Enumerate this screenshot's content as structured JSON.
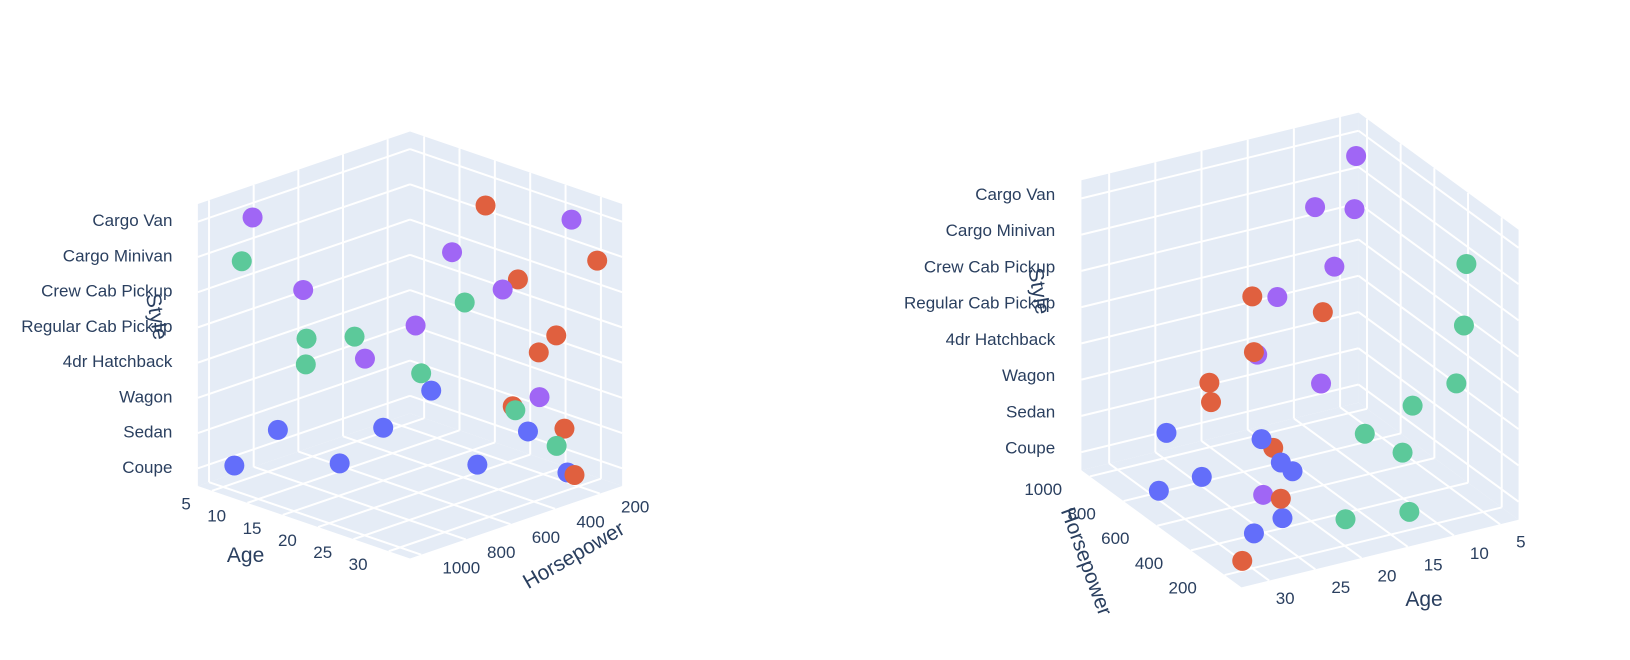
{
  "chart_data": [
    {
      "type": "scatter3d",
      "xlabel": "Age",
      "ylabel": "Horsepower",
      "zlabel": "Style",
      "xlim": [
        3,
        33
      ],
      "ylim": [
        100,
        1050
      ],
      "xticks": [
        5,
        10,
        15,
        20,
        25,
        30
      ],
      "yticks": [
        200,
        400,
        600,
        800,
        1000
      ],
      "zcategories": [
        "Coupe",
        "Sedan",
        "Wagon",
        "4dr Hatchback",
        "Regular Cab Pickup",
        "Crew Cab Pickup",
        "Cargo Minivan",
        "Cargo Van"
      ],
      "series": [
        {
          "color": "#636efa",
          "x": [
            5,
            8,
            12,
            15,
            18,
            22,
            26,
            30
          ],
          "y": [
            950,
            850,
            700,
            600,
            480,
            400,
            300,
            250
          ],
          "z": [
            "Coupe",
            "Sedan",
            "Coupe",
            "Sedan",
            "Wagon",
            "Coupe",
            "Sedan",
            "Coupe"
          ]
        },
        {
          "color": "#a066f5",
          "x": [
            6,
            10,
            14,
            18,
            20,
            24,
            27,
            29
          ],
          "y": [
            900,
            800,
            650,
            550,
            450,
            350,
            280,
            200
          ],
          "z": [
            "Cargo Van",
            "Crew Cab Pickup",
            "4dr Hatchback",
            "Regular Cab Pickup",
            "Cargo Minivan",
            "Crew Cab Pickup",
            "Wagon",
            "Cargo Van"
          ]
        },
        {
          "color": "#5cc99a",
          "x": [
            7,
            11,
            16,
            21,
            24,
            28,
            31,
            13
          ],
          "y": [
            980,
            820,
            760,
            620,
            520,
            420,
            330,
            880
          ],
          "z": [
            "Cargo Minivan",
            "4dr Hatchback",
            "Regular Cab Pickup",
            "4dr Hatchback",
            "Crew Cab Pickup",
            "Wagon",
            "Sedan",
            "Regular Cab Pickup"
          ]
        },
        {
          "color": "#e0603f",
          "x": [
            20,
            23,
            25,
            27,
            28,
            30,
            31,
            32
          ],
          "y": [
            300,
            250,
            220,
            400,
            200,
            300,
            250,
            180
          ],
          "z": [
            "Cargo Van",
            "Crew Cab Pickup",
            "4dr Hatchback",
            "Wagon",
            "Sedan",
            "Regular Cab Pickup",
            "Coupe",
            "Cargo Minivan"
          ]
        }
      ]
    },
    {
      "type": "scatter3d",
      "xlabel": "Age",
      "ylabel": "Horsepower",
      "zlabel": "Style",
      "xlim": [
        3,
        33
      ],
      "ylim": [
        100,
        1050
      ],
      "xticks": [
        5,
        10,
        15,
        20,
        25,
        30
      ],
      "yticks": [
        200,
        400,
        600,
        800,
        1000
      ],
      "zcategories": [
        "Coupe",
        "Sedan",
        "Wagon",
        "4dr Hatchback",
        "Regular Cab Pickup",
        "Crew Cab Pickup",
        "Cargo Minivan",
        "Cargo Van"
      ],
      "series": [
        {
          "color": "#636efa",
          "x": [
            28,
            30,
            26,
            31,
            22,
            29,
            24,
            32
          ],
          "y": [
            300,
            500,
            250,
            700,
            400,
            200,
            350,
            600
          ],
          "z": [
            "Coupe",
            "Sedan",
            "Wagon",
            "Coupe",
            "Sedan",
            "4dr Hatchback",
            "Coupe",
            "Wagon"
          ]
        },
        {
          "color": "#a066f5",
          "x": [
            6,
            8,
            20,
            24,
            18,
            27,
            12,
            15
          ],
          "y": [
            900,
            800,
            600,
            500,
            450,
            300,
            700,
            650
          ],
          "z": [
            "Cargo Van",
            "Cargo Minivan",
            "Crew Cab Pickup",
            "Regular Cab Pickup",
            "4dr Hatchback",
            "Sedan",
            "Crew Cab Pickup",
            "Cargo Van"
          ]
        },
        {
          "color": "#5cc99a",
          "x": [
            5,
            7,
            9,
            11,
            13,
            16,
            19,
            8
          ],
          "y": [
            300,
            250,
            400,
            350,
            200,
            300,
            250,
            150
          ],
          "z": [
            "Cargo Minivan",
            "4dr Hatchback",
            "Wagon",
            "Sedan",
            "Coupe",
            "Wagon",
            "Coupe",
            "Crew Cab Pickup"
          ]
        },
        {
          "color": "#e0603f",
          "x": [
            30,
            28,
            31,
            26,
            32,
            25,
            29,
            22
          ],
          "y": [
            200,
            300,
            400,
            250,
            150,
            350,
            500,
            220
          ],
          "z": [
            "Cargo Van",
            "Crew Cab Pickup",
            "Regular Cab Pickup",
            "Sedan",
            "Coupe",
            "Wagon",
            "4dr Hatchback",
            "Cargo Minivan"
          ]
        }
      ]
    }
  ]
}
